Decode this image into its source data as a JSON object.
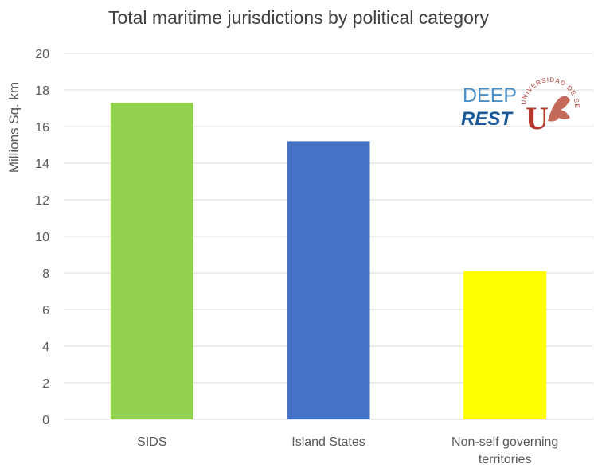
{
  "chart_data": {
    "type": "bar",
    "title": "Total maritime jurisdictions by political category",
    "xlabel": "",
    "ylabel": "Millions Sq. km",
    "ylim": [
      0,
      20
    ],
    "yticks": [
      0,
      2,
      4,
      6,
      8,
      10,
      12,
      14,
      16,
      18,
      20
    ],
    "grid": true,
    "categories": [
      "SIDS",
      "Island States",
      "Non-self governing territories"
    ],
    "category_lines": [
      [
        "SIDS"
      ],
      [
        "Island States"
      ],
      [
        "Non-self governing",
        "territories"
      ]
    ],
    "values": [
      17.3,
      15.2,
      8.1
    ],
    "colors": [
      "#92d050",
      "#4472c4",
      "#ffff00"
    ]
  },
  "logos": {
    "deep_rest_top": "DEEP",
    "deep_rest_bottom": "REST",
    "university_text": "UNIVERSIDAD DE SEVILLA",
    "university_letter": "U",
    "deep_color": "#1f77b4",
    "university_color": "#c0392b"
  }
}
